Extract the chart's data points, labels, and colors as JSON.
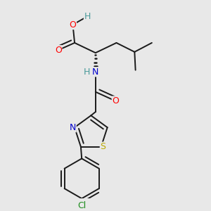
{
  "background_color": "#e8e8e8",
  "fig_size": [
    3.0,
    3.0
  ],
  "dpi": 100,
  "bond_color": "#1a1a1a",
  "bond_lw": 1.4,
  "atom_colors": {
    "O": "#ff0000",
    "N": "#0000cc",
    "S": "#bbaa00",
    "Cl": "#1a8a1a",
    "H": "#4a9a9a",
    "C": "#1a1a1a"
  },
  "font_size": 9.0
}
